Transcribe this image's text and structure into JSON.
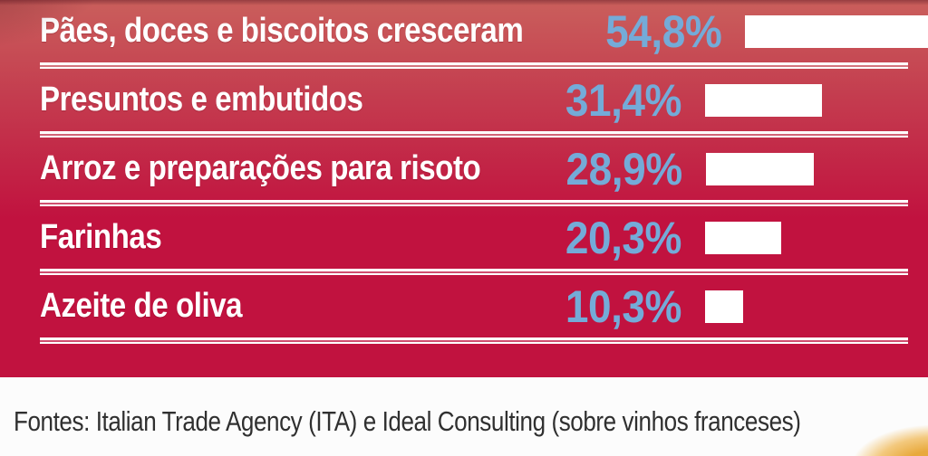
{
  "chart_data": {
    "type": "bar",
    "orientation": "horizontal",
    "categories": [
      "Pães, doces e biscoitos cresceram",
      "Presuntos e embutidos",
      "Arroz e preparações para risoto",
      "Farinhas",
      "Azeite de oliva"
    ],
    "values": [
      54.8,
      31.4,
      28.9,
      20.3,
      10.3
    ],
    "value_labels": [
      "54,8%",
      "31,4%",
      "28,9%",
      "20,3%",
      "10,3%"
    ],
    "xlim": [
      0,
      60
    ],
    "legend": "none",
    "grid": false,
    "bar_color": "#ffffff",
    "value_label_color": "#74abd8",
    "category_label_color": "#ffffff",
    "background_gradient_top": "#ca5f5c",
    "background_gradient_bottom": "#c1123f"
  },
  "footer": {
    "source_text": "Fontes: Italian Trade Agency (ITA) e Ideal Consulting (sobre vinhos franceses)",
    "background_color": "#fcfcfc",
    "text_color": "#303030",
    "corner_accent_color": "#e8a93c"
  }
}
